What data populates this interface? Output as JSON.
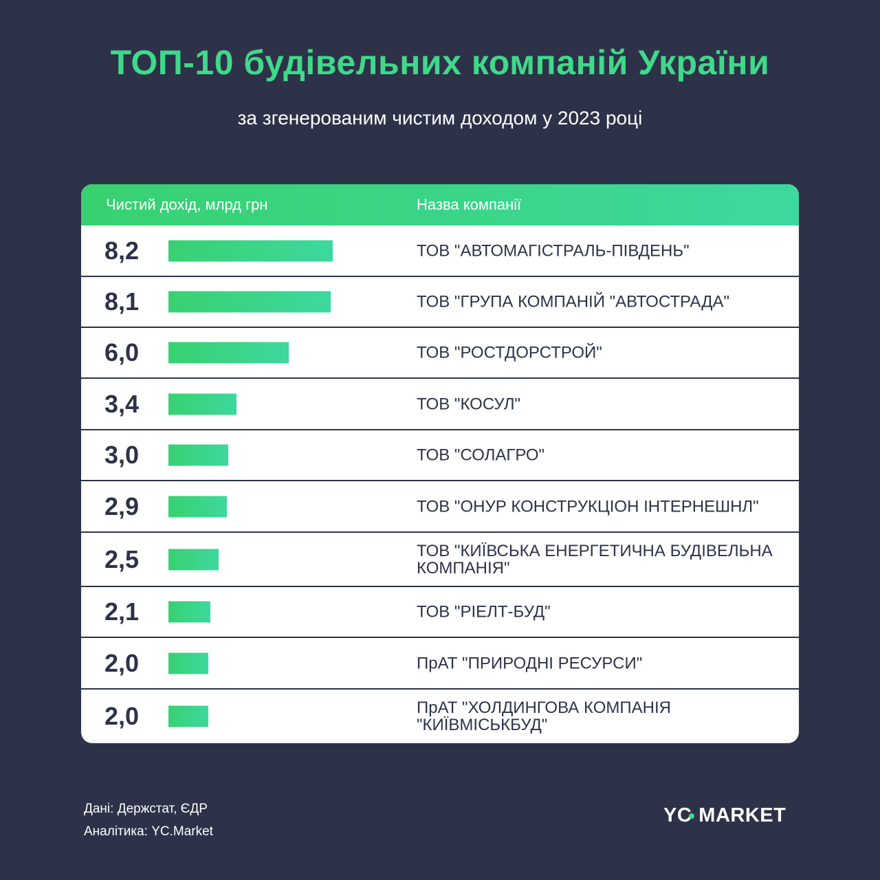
{
  "title": "ТОП-10 будівельних компаній України",
  "subtitle": "за згенерованим чистим доходом у 2023 році",
  "table_header": {
    "value": "Чистий дохід, млрд грн",
    "name": "Назва компанії"
  },
  "chart_data": {
    "type": "bar",
    "title": "ТОП-10 будівельних компаній України",
    "subtitle": "за згенерованим чистим доходом у 2023 році",
    "value_label": "Чистий дохід, млрд грн",
    "category_label": "Назва компанії",
    "max_value": 8.2,
    "rows": [
      {
        "value": 8.2,
        "value_label": "8,2",
        "name": "ТОВ \"АВТОМАГІСТРАЛЬ-ПІВДЕНЬ\""
      },
      {
        "value": 8.1,
        "value_label": "8,1",
        "name": "ТОВ \"ГРУПА КОМПАНІЙ \"АВТОСТРАДА\""
      },
      {
        "value": 6.0,
        "value_label": "6,0",
        "name": "ТОВ \"РОСТДОРСТРОЙ\""
      },
      {
        "value": 3.4,
        "value_label": "3,4",
        "name": "ТОВ \"КОСУЛ\""
      },
      {
        "value": 3.0,
        "value_label": "3,0",
        "name": "ТОВ \"СОЛАГРО\""
      },
      {
        "value": 2.9,
        "value_label": "2,9",
        "name": "ТОВ \"ОНУР КОНСТРУКЦІОН ІНТЕРНЕШНЛ\""
      },
      {
        "value": 2.5,
        "value_label": "2,5",
        "name": "ТОВ \"КИЇВСЬКА ЕНЕРГЕТИЧНА БУДІВЕЛЬНА КОМПАНІЯ\""
      },
      {
        "value": 2.1,
        "value_label": "2,1",
        "name": "ТОВ \"РІЕЛТ-БУД\""
      },
      {
        "value": 2.0,
        "value_label": "2,0",
        "name": "ПрАТ \"ПРИРОДНІ РЕСУРСИ\""
      },
      {
        "value": 2.0,
        "value_label": "2,0",
        "name": "ПрАТ \"ХОЛДИНГОВА КОМПАНІЯ \"КИЇВМІСЬКБУД\""
      }
    ],
    "colors": {
      "bar_start": "#38d171",
      "bar_end": "#3dd89e"
    }
  },
  "footer": {
    "data_source": "Дані: Держстат, ЄДР",
    "analytics": "Аналітика: YC.Market",
    "logo": "YC MARKET"
  },
  "colors": {
    "background": "#2d3249",
    "accent": "#3fd98a",
    "table_bg": "#ffffff",
    "text_dark": "#2d3249"
  }
}
